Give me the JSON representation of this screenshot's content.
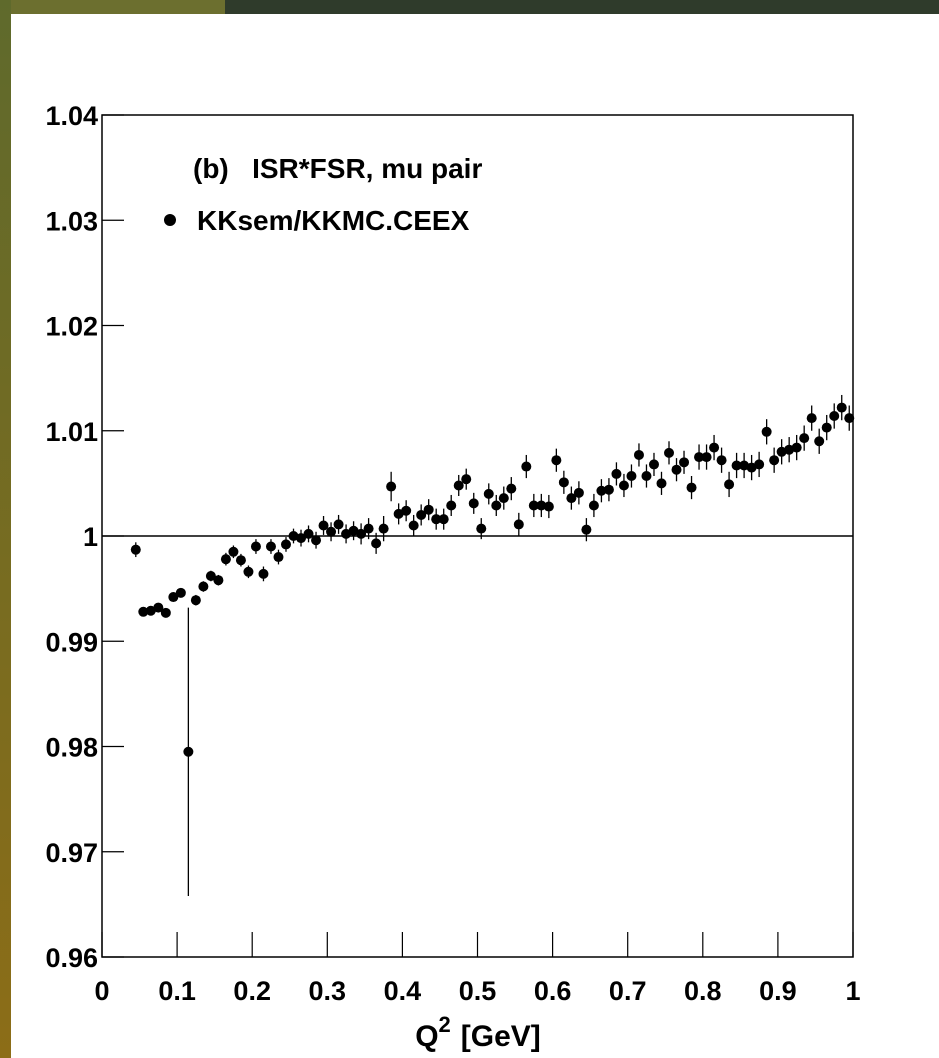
{
  "chart_data": {
    "type": "scatter",
    "annotation": "(b)   ISR*FSR, mu pair",
    "x_label": {
      "symbol": "Q",
      "superscript": "2",
      "unit": "[GeV]"
    },
    "xlim": [
      0,
      1
    ],
    "ylim": [
      0.96,
      1.04
    ],
    "xticks": [
      0,
      0.1,
      0.2,
      0.3,
      0.4,
      0.5,
      0.6,
      0.7,
      0.8,
      0.9,
      1
    ],
    "yticks": [
      0.96,
      0.97,
      0.98,
      0.99,
      1,
      1.01,
      1.02,
      1.03,
      1.04
    ],
    "reference_line": 1,
    "grid": false,
    "legend": "top-left",
    "series": [
      {
        "name": "KKsem/KKMC.CEEX",
        "color": "#000000",
        "x": [
          0.045,
          0.055,
          0.065,
          0.075,
          0.085,
          0.095,
          0.105,
          0.115,
          0.125,
          0.135,
          0.145,
          0.155,
          0.165,
          0.175,
          0.185,
          0.195,
          0.205,
          0.215,
          0.225,
          0.235,
          0.245,
          0.255,
          0.265,
          0.275,
          0.285,
          0.295,
          0.305,
          0.315,
          0.325,
          0.335,
          0.345,
          0.355,
          0.365,
          0.375,
          0.385,
          0.395,
          0.405,
          0.415,
          0.425,
          0.435,
          0.445,
          0.455,
          0.465,
          0.475,
          0.485,
          0.495,
          0.505,
          0.515,
          0.525,
          0.535,
          0.545,
          0.555,
          0.565,
          0.575,
          0.585,
          0.595,
          0.605,
          0.615,
          0.625,
          0.635,
          0.645,
          0.655,
          0.665,
          0.675,
          0.685,
          0.695,
          0.705,
          0.715,
          0.725,
          0.735,
          0.745,
          0.755,
          0.765,
          0.775,
          0.785,
          0.795,
          0.805,
          0.815,
          0.825,
          0.835,
          0.845,
          0.855,
          0.865,
          0.875,
          0.885,
          0.895,
          0.905,
          0.915,
          0.925,
          0.935,
          0.945,
          0.955,
          0.965,
          0.975,
          0.985,
          0.995
        ],
        "values": [
          0.9987,
          0.9928,
          0.9929,
          0.9932,
          0.9927,
          0.9942,
          0.9946,
          0.9795,
          0.9939,
          0.9952,
          0.9962,
          0.9958,
          0.9978,
          0.9985,
          0.9977,
          0.9966,
          0.999,
          0.9964,
          0.999,
          0.998,
          0.9992,
          1.0,
          0.9998,
          1.0002,
          0.9996,
          1.001,
          1.0004,
          1.0011,
          1.0002,
          1.0005,
          1.0002,
          1.0007,
          0.9993,
          1.0007,
          1.0047,
          1.0021,
          1.0024,
          1.001,
          1.002,
          1.0025,
          1.0016,
          1.0016,
          1.0029,
          1.0048,
          1.0054,
          1.0031,
          1.0007,
          1.004,
          1.0029,
          1.0036,
          1.0045,
          1.0011,
          1.0066,
          1.0029,
          1.0029,
          1.0028,
          1.0072,
          1.0051,
          1.0036,
          1.0041,
          1.0006,
          1.0029,
          1.0043,
          1.0044,
          1.0059,
          1.0048,
          1.0057,
          1.0077,
          1.0057,
          1.0068,
          1.005,
          1.0079,
          1.0063,
          1.007,
          1.0046,
          1.0075,
          1.0075,
          1.0084,
          1.0072,
          1.0049,
          1.0067,
          1.0067,
          1.0065,
          1.0068,
          1.0099,
          1.0072,
          1.008,
          1.0082,
          1.0084,
          1.0093,
          1.0112,
          1.009,
          1.0103,
          1.0114,
          1.0122,
          1.0112
        ],
        "errors": [
          0.0007,
          0.0003,
          0.0003,
          0.0003,
          0.0004,
          0.0004,
          0.0004,
          0.0137,
          0.0005,
          0.0005,
          0.0005,
          0.0005,
          0.0006,
          0.0006,
          0.0006,
          0.0006,
          0.0007,
          0.0007,
          0.0007,
          0.0007,
          0.0007,
          0.0007,
          0.0008,
          0.0008,
          0.0008,
          0.0009,
          0.0009,
          0.0009,
          0.0009,
          0.0009,
          0.001,
          0.001,
          0.001,
          0.0012,
          0.0014,
          0.001,
          0.001,
          0.001,
          0.001,
          0.001,
          0.001,
          0.001,
          0.001,
          0.001,
          0.001,
          0.001,
          0.001,
          0.001,
          0.001,
          0.0011,
          0.0011,
          0.0011,
          0.0011,
          0.0011,
          0.0011,
          0.0011,
          0.0011,
          0.0011,
          0.0011,
          0.0011,
          0.0011,
          0.0011,
          0.0011,
          0.0011,
          0.0011,
          0.0011,
          0.0011,
          0.0011,
          0.0011,
          0.0011,
          0.0011,
          0.0011,
          0.0011,
          0.0011,
          0.0011,
          0.0012,
          0.0012,
          0.0012,
          0.0012,
          0.0012,
          0.0012,
          0.0012,
          0.0012,
          0.0012,
          0.0012,
          0.0012,
          0.0012,
          0.0012,
          0.0012,
          0.0012,
          0.0012,
          0.0012,
          0.0012,
          0.0012,
          0.0012,
          0.0012
        ]
      }
    ]
  }
}
